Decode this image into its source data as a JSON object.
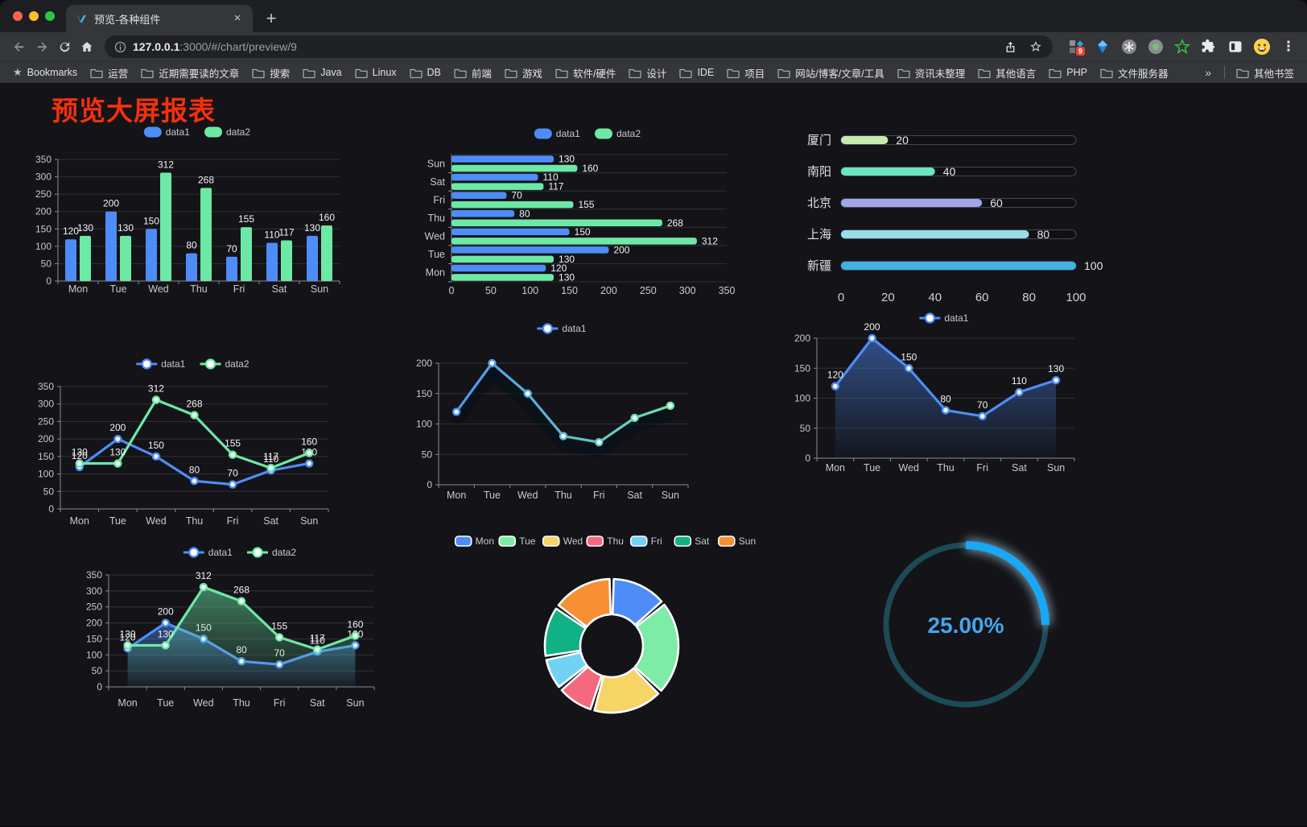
{
  "browser": {
    "traffic_lights": {
      "close": "#ff5f57",
      "minimize": "#febc2e",
      "zoom": "#2ac840"
    },
    "tab": {
      "title": "预览-各种组件",
      "close_label": "×",
      "new_tab_label": "+"
    },
    "nav": {
      "url_host": "127.0.0.1",
      "url_rest": ":3000/#/chart/preview/9"
    },
    "icons": {
      "bookmarks_star": "★",
      "bookmark_page_star": "☆",
      "menu_dots": "⋮"
    },
    "extensions_badge": "9",
    "bookmarks": {
      "root_label": "Bookmarks",
      "folders": [
        "运营",
        "近期需要读的文章",
        "搜索",
        "Java",
        "Linux",
        "DB",
        "前端",
        "游戏",
        "软件/硬件",
        "设计",
        "IDE",
        "项目",
        "网站/博客/文章/工具",
        "资讯未整理",
        "其他语言",
        "PHP",
        "文件服务器"
      ],
      "overflow_label": "»",
      "other_label": "其他书签"
    }
  },
  "page": {
    "title": "预览大屏报表",
    "title_color": "#f5300c"
  },
  "chart_data": [
    {
      "id": "grouped-bar",
      "type": "bar",
      "categories": [
        "Mon",
        "Tue",
        "Wed",
        "Thu",
        "Fri",
        "Sat",
        "Sun"
      ],
      "series": [
        {
          "name": "data1",
          "color": "#4e8df7",
          "values": [
            120,
            200,
            150,
            80,
            70,
            110,
            130
          ]
        },
        {
          "name": "data2",
          "color": "#6de9a6",
          "values": [
            130,
            130,
            312,
            268,
            155,
            117,
            160
          ]
        }
      ],
      "ylim": [
        0,
        350
      ],
      "ystep": 50,
      "labels": true,
      "legend_position": "top",
      "grid": true
    },
    {
      "id": "horizontal-bar",
      "type": "bar",
      "orientation": "horizontal",
      "categories": [
        "Mon",
        "Tue",
        "Wed",
        "Thu",
        "Fri",
        "Sat",
        "Sun"
      ],
      "series": [
        {
          "name": "data1",
          "color": "#4e8df7",
          "values": [
            120,
            200,
            150,
            80,
            70,
            110,
            130
          ]
        },
        {
          "name": "data2",
          "color": "#6de9a6",
          "values": [
            130,
            130,
            312,
            268,
            155,
            117,
            160
          ]
        }
      ],
      "xlim": [
        0,
        350
      ],
      "xstep": 50,
      "labels": true,
      "legend_position": "top",
      "grid": true
    },
    {
      "id": "city-progress",
      "type": "bar",
      "orientation": "horizontal",
      "style": "progress",
      "xlim": [
        0,
        100
      ],
      "xticks": [
        0,
        20,
        40,
        60,
        80,
        100
      ],
      "items": [
        {
          "label": "厦门",
          "value": 20,
          "color": "#c4ebad"
        },
        {
          "label": "南阳",
          "value": 40,
          "color": "#6be6c1"
        },
        {
          "label": "北京",
          "value": 60,
          "color": "#a0a7e6"
        },
        {
          "label": "上海",
          "value": 80,
          "color": "#96dee8"
        },
        {
          "label": "新疆",
          "value": 100,
          "color": "#3fb1e3"
        }
      ]
    },
    {
      "id": "two-line",
      "type": "line",
      "categories": [
        "Mon",
        "Tue",
        "Wed",
        "Thu",
        "Fri",
        "Sat",
        "Sun"
      ],
      "series": [
        {
          "name": "data1",
          "color": "#4e8df7",
          "values": [
            120,
            200,
            150,
            80,
            70,
            110,
            130
          ]
        },
        {
          "name": "data2",
          "color": "#6de9a6",
          "values": [
            130,
            130,
            312,
            268,
            155,
            117,
            160
          ]
        }
      ],
      "ylim": [
        0,
        350
      ],
      "ystep": 50,
      "labels": true,
      "legend_position": "top",
      "grid": true
    },
    {
      "id": "gradient-line",
      "type": "line",
      "categories": [
        "Mon",
        "Tue",
        "Wed",
        "Thu",
        "Fri",
        "Sat",
        "Sun"
      ],
      "series": [
        {
          "name": "data1",
          "gradient": [
            "#4e8df7",
            "#6de9a6"
          ],
          "values": [
            120,
            200,
            150,
            80,
            70,
            110,
            130
          ]
        }
      ],
      "ylim": [
        0,
        200
      ],
      "ystep": 50,
      "labels": false,
      "legend_position": "top",
      "grid": true
    },
    {
      "id": "blue-area",
      "type": "area",
      "categories": [
        "Mon",
        "Tue",
        "Wed",
        "Thu",
        "Fri",
        "Sat",
        "Sun"
      ],
      "series": [
        {
          "name": "data1",
          "color": "#4e8df7",
          "values": [
            120,
            200,
            150,
            80,
            70,
            110,
            130
          ]
        }
      ],
      "ylim": [
        0,
        200
      ],
      "ystep": 50,
      "labels": true,
      "legend_position": "top",
      "grid": true
    },
    {
      "id": "two-area",
      "type": "area",
      "categories": [
        "Mon",
        "Tue",
        "Wed",
        "Thu",
        "Fri",
        "Sat",
        "Sun"
      ],
      "series": [
        {
          "name": "data1",
          "color": "#4e8df7",
          "values": [
            120,
            200,
            150,
            80,
            70,
            110,
            130
          ]
        },
        {
          "name": "data2",
          "color": "#6de9a6",
          "values": [
            130,
            130,
            312,
            268,
            155,
            117,
            160
          ]
        }
      ],
      "ylim": [
        0,
        350
      ],
      "ystep": 50,
      "labels": true,
      "legend_position": "top",
      "grid": true
    },
    {
      "id": "week-donut",
      "type": "pie",
      "legend_position": "top",
      "items": [
        {
          "label": "Mon",
          "value": 120,
          "color": "#4e8df7"
        },
        {
          "label": "Tue",
          "value": 200,
          "color": "#7ceca6"
        },
        {
          "label": "Wed",
          "value": 150,
          "color": "#f6d465"
        },
        {
          "label": "Thu",
          "value": 80,
          "color": "#f6687d"
        },
        {
          "label": "Fri",
          "value": 70,
          "color": "#71d2f5"
        },
        {
          "label": "Sat",
          "value": 110,
          "color": "#10b184"
        },
        {
          "label": "Sun",
          "value": 130,
          "color": "#f78f35"
        }
      ]
    },
    {
      "id": "percent-gauge",
      "type": "gauge",
      "value": 25,
      "value_label": "25.00%",
      "color": "#18a8f5",
      "track_color": "#1d4a57",
      "text_color": "#45a5ec"
    }
  ]
}
